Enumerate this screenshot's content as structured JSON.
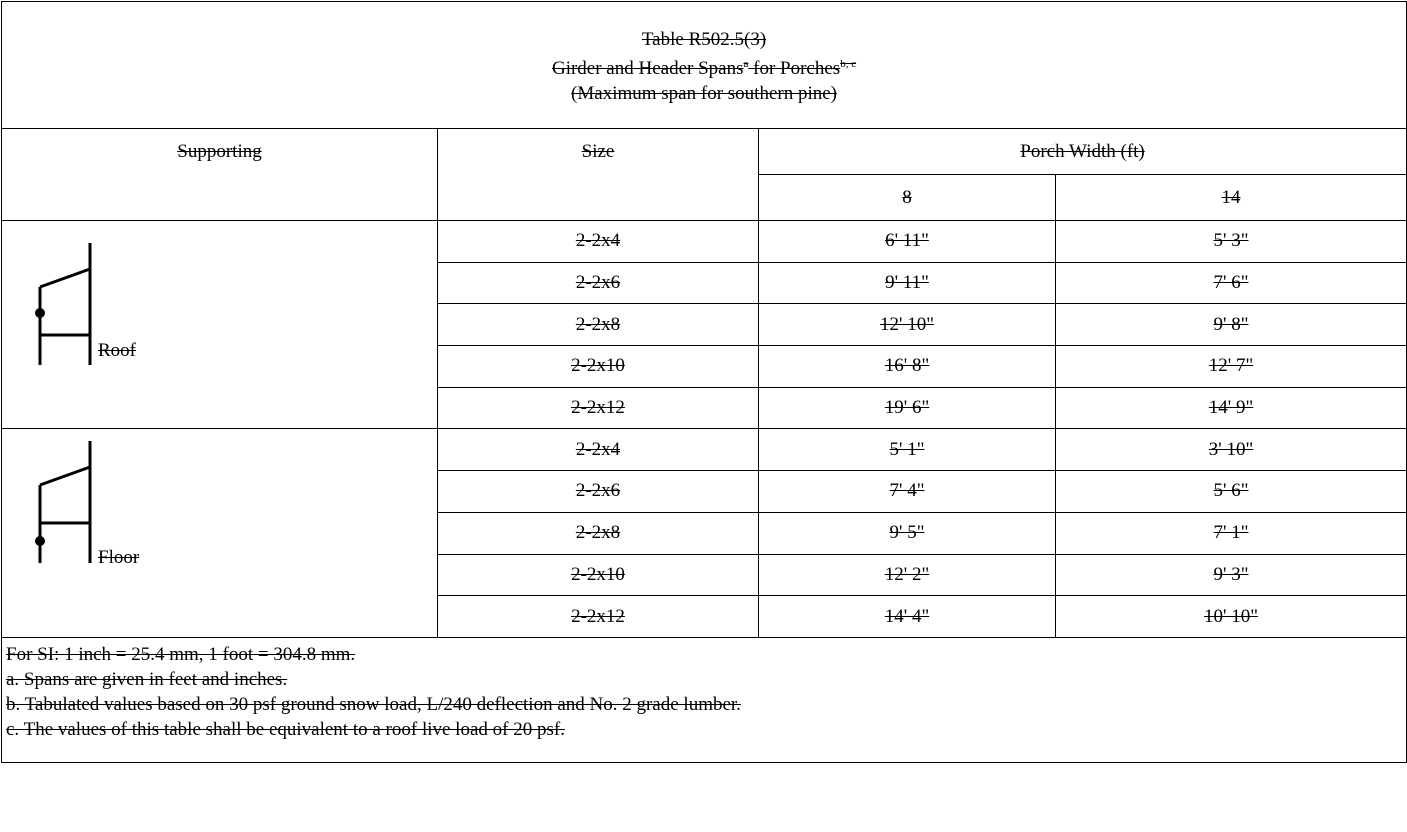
{
  "caption": {
    "line1": "Table R502.5(3)",
    "line2_main": "Girder and Header Spans",
    "line2_sup1": "a",
    "line2_mid": " for Porches",
    "line2_sup2": "b, c",
    "line3": "(Maximum span for southern pine)"
  },
  "headers": {
    "supporting": "Supporting",
    "size": "Size",
    "porch_width": "Porch Width (ft)",
    "width_8": "8",
    "width_14": "14"
  },
  "groups": [
    {
      "label": "Roof",
      "icon": "roof-support-diagram-icon",
      "rows": [
        {
          "size": "2-2x4",
          "w8": "6' 11\"",
          "w14": "5' 3\""
        },
        {
          "size": "2-2x6",
          "w8": "9' 11\"",
          "w14": "7' 6\""
        },
        {
          "size": "2-2x8",
          "w8": "12' 10\"",
          "w14": "9' 8\""
        },
        {
          "size": "2-2x10",
          "w8": "16' 8\"",
          "w14": "12' 7\""
        },
        {
          "size": "2-2x12",
          "w8": "19' 6\"",
          "w14": "14' 9\""
        }
      ]
    },
    {
      "label": "Floor",
      "icon": "floor-support-diagram-icon",
      "rows": [
        {
          "size": "2-2x4",
          "w8": "5' 1\"",
          "w14": "3' 10\""
        },
        {
          "size": "2-2x6",
          "w8": "7' 4\"",
          "w14": "5' 6\""
        },
        {
          "size": "2-2x8",
          "w8": "9' 5\"",
          "w14": "7' 1\""
        },
        {
          "size": "2-2x10",
          "w8": "12' 2\"",
          "w14": "9' 3\""
        },
        {
          "size": "2-2x12",
          "w8": "14' 4\"",
          "w14": "10' 10\""
        }
      ]
    }
  ],
  "notes": [
    "For SI: 1 inch = 25.4 mm, 1 foot = 304.8 mm.",
    "a. Spans are given in feet and inches.",
    "b. Tabulated values based on 30 psf ground snow load, L/240 deflection and No. 2 grade lumber.",
    "c. The values of this table shall be equivalent to a roof live load of 20 psf."
  ]
}
